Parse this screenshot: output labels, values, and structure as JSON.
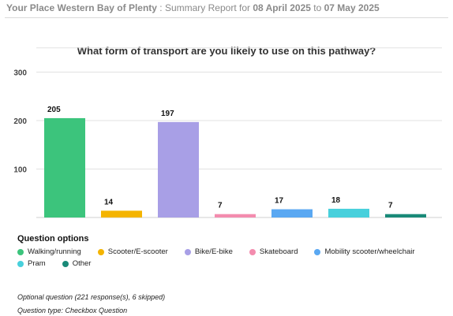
{
  "header": {
    "org": "Your Place Western Bay of Plenty",
    "sep": " : Summary Report for ",
    "start_date": "08 April 2025",
    "mid": " to ",
    "end_date": "07 May 2025"
  },
  "chart_data": {
    "type": "bar",
    "title": "What form of transport are you likely to use on this pathway?",
    "categories": [
      "Walking/running",
      "Scooter/E-scooter",
      "Bike/E-bike",
      "Skateboard",
      "Mobility scooter/wheelchair",
      "Pram",
      "Other"
    ],
    "values": [
      205,
      14,
      197,
      7,
      17,
      18,
      7
    ],
    "colors": [
      "#3cc47c",
      "#f4b400",
      "#a89fe6",
      "#f38cae",
      "#5aa8f2",
      "#48d0dc",
      "#198a78"
    ],
    "ylim": [
      0,
      350
    ],
    "yticks": [
      100,
      200,
      300
    ],
    "grid": true,
    "legend_title": "Question options",
    "legend_position": "bottom-left"
  },
  "footer": {
    "note": "Optional question (221 response(s), 6 skipped)",
    "type": "Question type: Checkbox Question"
  }
}
